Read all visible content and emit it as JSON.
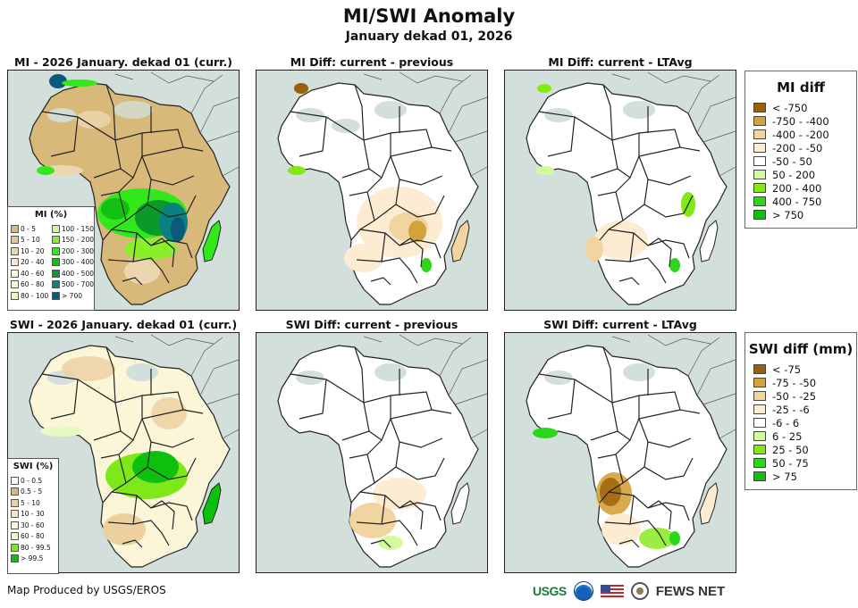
{
  "header": {
    "title": "MI/SWI Anomaly",
    "subtitle": "January dekad 01, 2026"
  },
  "panels": [
    {
      "title": "MI - 2026 January. dekad 01 (curr.)",
      "variable": "MI",
      "type": "current"
    },
    {
      "title": "MI Diff: current - previous",
      "variable": "MI",
      "type": "diff-previous"
    },
    {
      "title": "MI Diff: current - LTAvg",
      "variable": "MI",
      "type": "diff-ltavg"
    },
    {
      "title": "SWI - 2026 January. dekad 01 (curr.)",
      "variable": "SWI",
      "type": "current"
    },
    {
      "title": "SWI Diff: current - previous",
      "variable": "SWI",
      "type": "diff-previous"
    },
    {
      "title": "SWI Diff: current - LTAvg",
      "variable": "SWI",
      "type": "diff-ltavg"
    }
  ],
  "legends": {
    "mi_pct": {
      "title": "MI (%)",
      "items": [
        {
          "label": "0 - 5",
          "color": "#d9b97a"
        },
        {
          "label": "5 - 10",
          "color": "#e3c795"
        },
        {
          "label": "10 - 20",
          "color": "#ecd6b0"
        },
        {
          "label": "20 - 40",
          "color": "#f6e6cf"
        },
        {
          "label": "40 - 60",
          "color": "#fdfbe0"
        },
        {
          "label": "60 - 80",
          "color": "#f3fbcf"
        },
        {
          "label": "80 - 100",
          "color": "#e6fac2"
        },
        {
          "label": "100 - 150",
          "color": "#ccf5a0"
        },
        {
          "label": "150 - 200",
          "color": "#8aee2a"
        },
        {
          "label": "200 - 300",
          "color": "#33e81a"
        },
        {
          "label": "300 - 400",
          "color": "#12c012"
        },
        {
          "label": "400 - 500",
          "color": "#0a9a2a"
        },
        {
          "label": "500 - 700",
          "color": "#0a8080"
        },
        {
          "label": "> 700",
          "color": "#0a5a7a"
        }
      ]
    },
    "swi_pct": {
      "title": "SWI (%)",
      "items": [
        {
          "label": "0 - 0.5",
          "color": "#ffffff"
        },
        {
          "label": "0.5 - 5",
          "color": "#d9b97a"
        },
        {
          "label": "5 - 10",
          "color": "#ecd0a0"
        },
        {
          "label": "10 - 30",
          "color": "#f6e4c8"
        },
        {
          "label": "30 - 60",
          "color": "#fbf6d8"
        },
        {
          "label": "60 - 80",
          "color": "#e6fac2"
        },
        {
          "label": "80 - 99.5",
          "color": "#7ee81a"
        },
        {
          "label": "> 99.5",
          "color": "#0ec00e"
        }
      ]
    },
    "mi_diff": {
      "title": "MI diff",
      "items": [
        {
          "label": "< -750",
          "color": "#9a6008"
        },
        {
          "label": "-750 - -400",
          "color": "#d4a23a"
        },
        {
          "label": "-400 - -200",
          "color": "#f2d4a0"
        },
        {
          "label": "-200 - -50",
          "color": "#fdebd2"
        },
        {
          "label": "-50 - 50",
          "color": "#ffffff"
        },
        {
          "label": "50 - 200",
          "color": "#d2fa9c"
        },
        {
          "label": "200 - 400",
          "color": "#82ea12"
        },
        {
          "label": "400 - 750",
          "color": "#2cd61a"
        },
        {
          "label": "> 750",
          "color": "#12bc12"
        }
      ]
    },
    "swi_diff": {
      "title": "SWI diff (mm)",
      "items": [
        {
          "label": "< -75",
          "color": "#9a6008"
        },
        {
          "label": "-75 - -50",
          "color": "#d4a23a"
        },
        {
          "label": "-50 - -25",
          "color": "#f2d4a0"
        },
        {
          "label": "-25 - -6",
          "color": "#fdebd2"
        },
        {
          "label": "-6 - 6",
          "color": "#ffffff"
        },
        {
          "label": "6 - 25",
          "color": "#d2fa9c"
        },
        {
          "label": "25 - 50",
          "color": "#82ea12"
        },
        {
          "label": "50 - 75",
          "color": "#2cd61a"
        },
        {
          "label": "> 75",
          "color": "#12bc12"
        }
      ]
    }
  },
  "footer": {
    "credit": "Map Produced by USGS/EROS",
    "logos": [
      "USGS",
      "NOAA",
      "US flag",
      "US Department of State seal",
      "FEWS NET"
    ],
    "usgs_text": "USGS",
    "fews_text": "FEWS NET"
  }
}
